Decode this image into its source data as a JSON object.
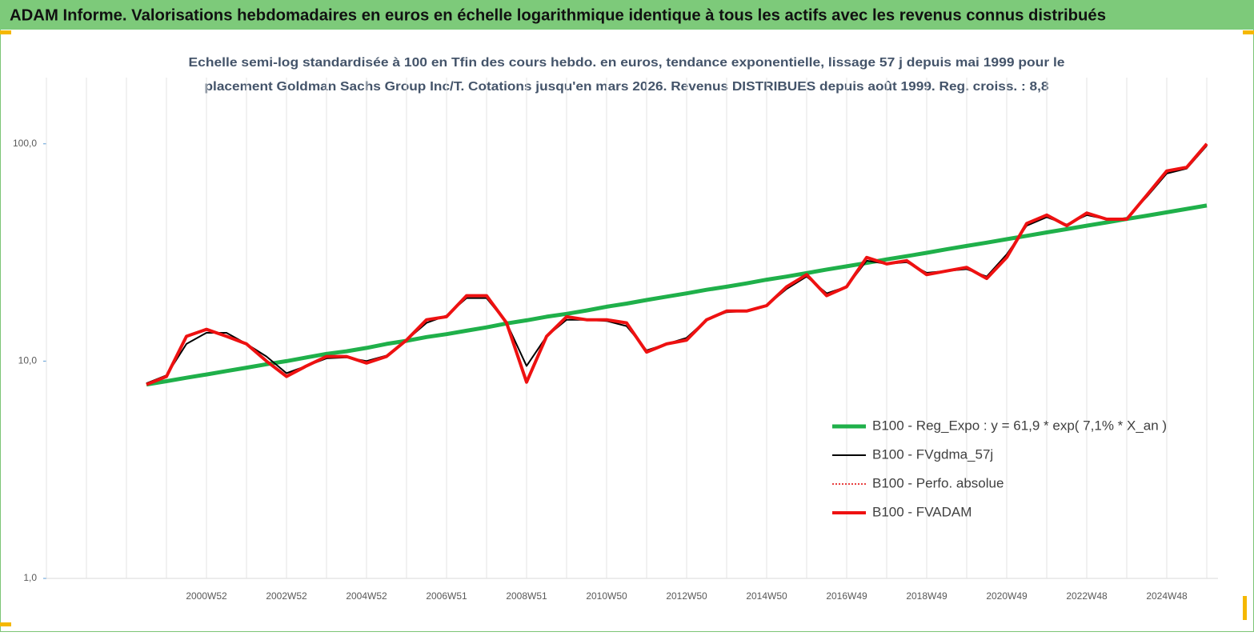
{
  "chart_data": {
    "type": "line",
    "title": "ADAM Informe. Valorisations hebdomadaires en euros en échelle logarithmique identique à tous les actifs avec les revenus connus distribués",
    "subtitle": [
      "Echelle semi-log standardisée à 100 en Tfin des cours hebdo. en euros, tendance exponentielle, lissage 57 j depuis mai 1999 pour le",
      "placement Goldman Sachs Group Inc/T. Cotations jusqu'en mars 2026. Revenus DISTRIBUES depuis août 1999.  Reg. croiss. : 8,8"
    ],
    "y_scale": "log",
    "ylim": [
      1,
      200
    ],
    "yticks": [
      {
        "value": 1,
        "label": "1,0"
      },
      {
        "value": 10,
        "label": "10,0"
      },
      {
        "value": 100,
        "label": "100,0"
      }
    ],
    "grid": "x",
    "legend_position": "right",
    "categories": [
      null,
      null,
      null,
      null,
      null,
      null,
      null,
      null,
      "2000W52",
      null,
      null,
      null,
      "2002W52",
      null,
      null,
      null,
      "2004W52",
      null,
      null,
      null,
      "2006W51",
      null,
      null,
      null,
      "2008W51",
      null,
      null,
      null,
      "2010W50",
      null,
      null,
      null,
      "2012W50",
      null,
      null,
      null,
      "2014W50",
      null,
      null,
      null,
      "2016W49",
      null,
      null,
      null,
      "2018W49",
      null,
      null,
      null,
      "2020W49",
      null,
      null,
      null,
      "2022W48",
      null,
      null,
      null,
      "2024W48",
      null,
      null
    ],
    "series": [
      {
        "name": "B100 - Reg_Expo : y = 61,9 *  exp( 7,1% *  X_an )",
        "color": "#1fb04a",
        "width": 5,
        "dash": "none",
        "values": [
          null,
          null,
          null,
          null,
          null,
          7.8,
          8.08,
          8.38,
          8.68,
          9.0,
          9.33,
          9.67,
          10.0,
          10.4,
          10.8,
          11.1,
          11.5,
          12.0,
          12.4,
          12.9,
          13.3,
          13.8,
          14.3,
          14.9,
          15.4,
          16.0,
          16.5,
          17.1,
          17.8,
          18.4,
          19.1,
          19.8,
          20.5,
          21.3,
          22.0,
          22.8,
          23.7,
          24.5,
          25.4,
          26.4,
          27.3,
          28.3,
          29.4,
          30.4,
          31.5,
          32.7,
          33.9,
          35.1,
          36.4,
          37.7,
          39.1,
          40.5,
          42.0,
          43.5,
          45.1,
          46.7,
          48.4,
          50.2,
          52.0
        ]
      },
      {
        "name": "B100 - FVgdma_57j",
        "color": "#000000",
        "width": 2,
        "dash": "none",
        "values": [
          null,
          null,
          null,
          null,
          null,
          7.9,
          8.6,
          12,
          13.5,
          13.5,
          12,
          10.5,
          8.8,
          9.5,
          10.3,
          10.4,
          10,
          10.6,
          12.5,
          15,
          16.2,
          19.5,
          19.5,
          15,
          9.5,
          13,
          15.5,
          15.5,
          15.3,
          14.5,
          11.2,
          12,
          12.8,
          15.5,
          16.8,
          17,
          18,
          21.5,
          24.5,
          20.5,
          22,
          29,
          28,
          28.5,
          25.5,
          26,
          26.5,
          24.5,
          31,
          42,
          46,
          42.5,
          47,
          45,
          45.5,
          57,
          73,
          77,
          98
        ]
      },
      {
        "name": "B100 - Perfo. absolue",
        "color": "#e00000",
        "width": 1.5,
        "dash": "dotted",
        "values": [
          null,
          null,
          null,
          null,
          null,
          7.8,
          8.5,
          13,
          14,
          13,
          12,
          10,
          8.5,
          9.5,
          10.5,
          10.5,
          9.8,
          10.5,
          12.5,
          15.5,
          16,
          20,
          20,
          15,
          8,
          13,
          16,
          15.5,
          15.5,
          15,
          11,
          12,
          12.5,
          15.5,
          17,
          17,
          18,
          22,
          25,
          20,
          22,
          30,
          28,
          29,
          25,
          26,
          27,
          24,
          30,
          43,
          47,
          42,
          48,
          45,
          45,
          58,
          75,
          78,
          100
        ]
      },
      {
        "name": "B100 - FVADAM",
        "color": "#ee1111",
        "width": 4,
        "dash": "none",
        "values": [
          null,
          null,
          null,
          null,
          null,
          7.8,
          8.5,
          13,
          14,
          13,
          12,
          10,
          8.5,
          9.5,
          10.5,
          10.5,
          9.8,
          10.5,
          12.5,
          15.5,
          16,
          20,
          20,
          15,
          8,
          13,
          16,
          15.5,
          15.5,
          15,
          11,
          12,
          12.5,
          15.5,
          17,
          17,
          18,
          22,
          25,
          20,
          22,
          30,
          28,
          29,
          25,
          26,
          27,
          24,
          30,
          43,
          47,
          42,
          48,
          45,
          45,
          58,
          75,
          78,
          100
        ]
      }
    ]
  }
}
